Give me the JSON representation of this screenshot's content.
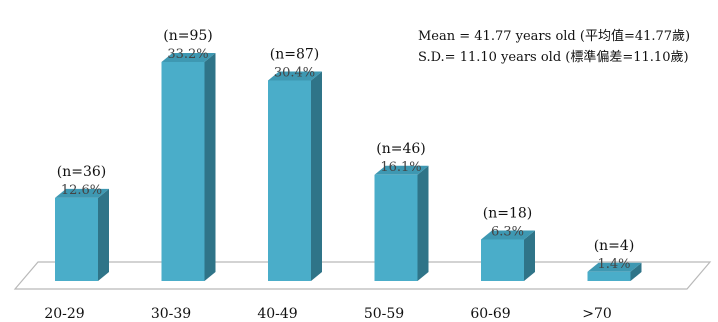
{
  "chart_data": {
    "type": "bar",
    "style": "3d",
    "categories": [
      "20-29",
      "30-39",
      "40-49",
      "50-59",
      "60-69",
      ">70"
    ],
    "values": [
      12.6,
      33.2,
      30.4,
      16.1,
      6.3,
      1.4
    ],
    "value_labels": [
      "12.6%",
      "33.2%",
      "30.4%",
      "16.1%",
      "6.3%",
      "1.4%"
    ],
    "counts": [
      "(n=36)",
      "(n=95)",
      "(n=87)",
      "(n=46)",
      "(n=18)",
      "(n=4)"
    ],
    "annotations": [
      "Mean = 41.77 years old (平均值=41.77歲)",
      "S.D.= 11.10 years old (標準偏差=11.10歲)"
    ],
    "title": "",
    "xlabel": "",
    "ylabel": "",
    "ylim": [
      0,
      33.2
    ],
    "grid": false,
    "colors": {
      "bar_front": "#4aadc9",
      "bar_side": "#2f7488",
      "bar_top": "#3e98b2",
      "floor_stroke": "#b9b9b9"
    }
  }
}
